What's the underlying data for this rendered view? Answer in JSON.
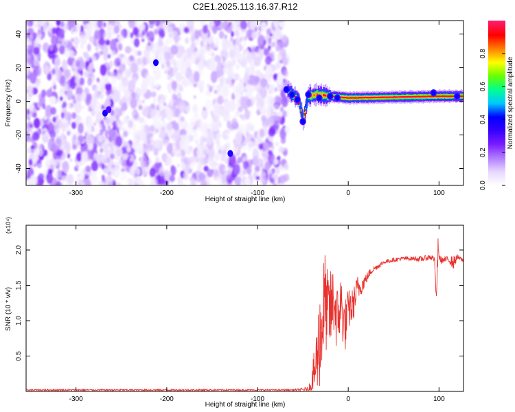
{
  "figure_title": "C2E1.2025.113.16.37.R12",
  "chart_data": [
    {
      "type": "heatmap",
      "title": "C2E1.2025.113.16.37.R12",
      "xlabel": "Height of straight line (km)",
      "ylabel": "Frequency (Hz)",
      "xlim": [
        -355,
        127
      ],
      "ylim": [
        -50,
        48
      ],
      "xticks": [
        -300,
        -200,
        -100,
        0,
        100
      ],
      "xtick_labels": [
        "-300",
        "-200",
        "-100",
        "0",
        "100"
      ],
      "yticks": [
        -40,
        -20,
        0,
        20,
        40
      ],
      "ytick_labels": [
        "-40",
        "-20",
        "0",
        "20",
        "40"
      ],
      "colorbar": {
        "label": "Normalized spectral amplitude",
        "range": [
          0.0,
          1.0
        ],
        "ticks": [
          0.0,
          0.2,
          0.4,
          0.6,
          0.8
        ],
        "tick_labels": [
          "0.0",
          "0.2",
          "0.4",
          "0.6",
          "0.8"
        ],
        "colormap": [
          "#ffffff",
          "#e6d6ff",
          "#b07cff",
          "#7a1dff",
          "#3500ff",
          "#0000ff",
          "#00c8ff",
          "#00ff90",
          "#66ff00",
          "#ffff00",
          "#ff8000",
          "#ff0000",
          "#ff1b6b"
        ]
      },
      "regions": [
        {
          "name": "noise",
          "x_range": [
            -355,
            -67
          ],
          "y_range": [
            -50,
            48
          ],
          "amplitude": [
            0.0,
            0.25
          ]
        },
        {
          "name": "signal band",
          "x_range": [
            -67,
            127
          ],
          "y_range": [
            -3,
            5
          ],
          "amplitude": [
            0.3,
            1.0
          ]
        }
      ],
      "band_center": [
        {
          "x": -68,
          "y": 7
        },
        {
          "x": -62,
          "y": 4
        },
        {
          "x": -55,
          "y": 1
        },
        {
          "x": -50,
          "y": -12
        },
        {
          "x": -45,
          "y": 3
        },
        {
          "x": -35,
          "y": 4
        },
        {
          "x": -20,
          "y": 3
        },
        {
          "x": 0,
          "y": 2
        },
        {
          "x": 50,
          "y": 2.5
        },
        {
          "x": 100,
          "y": 3
        },
        {
          "x": 127,
          "y": 3
        }
      ],
      "grid": false
    },
    {
      "type": "line",
      "xlabel": "Height of straight line (km)",
      "ylabel": "SNR (10 * v/v)",
      "yscale_label": "(x10⁴)",
      "xlim": [
        -355,
        127
      ],
      "ylim": [
        0,
        2.35
      ],
      "xticks": [
        -300,
        -200,
        -100,
        0,
        100
      ],
      "xtick_labels": [
        "-300",
        "-200",
        "-100",
        "0",
        "100"
      ],
      "yticks": [
        0.5,
        1.0,
        1.5,
        2.0
      ],
      "ytick_labels": [
        "0.5",
        "1.0",
        "1.5",
        "2.0"
      ],
      "series": [
        {
          "color": "#e8322e",
          "x": [
            -355,
            -250,
            -150,
            -60,
            -45,
            -40,
            -36,
            -32,
            -28,
            -26,
            -24,
            -20,
            -16,
            -12,
            -8,
            -4,
            0,
            5,
            10,
            15,
            20,
            25,
            30,
            40,
            50,
            60,
            70,
            80,
            90,
            95,
            97,
            99,
            100,
            103,
            110,
            116,
            120,
            127
          ],
          "values": [
            0.02,
            0.02,
            0.02,
            0.02,
            0.03,
            0.12,
            0.35,
            0.7,
            1.05,
            1.3,
            1.15,
            1.1,
            1.3,
            1.0,
            1.25,
            0.9,
            1.15,
            1.2,
            1.45,
            1.5,
            1.6,
            1.7,
            1.75,
            1.83,
            1.86,
            1.88,
            1.88,
            1.87,
            1.9,
            1.88,
            1.3,
            2.0,
            1.9,
            1.85,
            1.87,
            1.82,
            1.9,
            1.85
          ],
          "noise_amplitude": [
            0.01,
            0.01,
            0.01,
            0.01,
            0.03,
            0.15,
            0.45,
            0.7,
            0.8,
            0.75,
            0.6,
            0.6,
            0.55,
            0.5,
            0.45,
            0.4,
            0.3,
            0.25,
            0.2,
            0.12,
            0.08,
            0.05,
            0.04,
            0.03,
            0.03,
            0.03,
            0.03,
            0.04,
            0.04,
            0.05,
            0.05,
            0.2,
            0.05,
            0.05,
            0.04,
            0.1,
            0.04,
            0.03
          ]
        }
      ],
      "grid": false
    }
  ]
}
